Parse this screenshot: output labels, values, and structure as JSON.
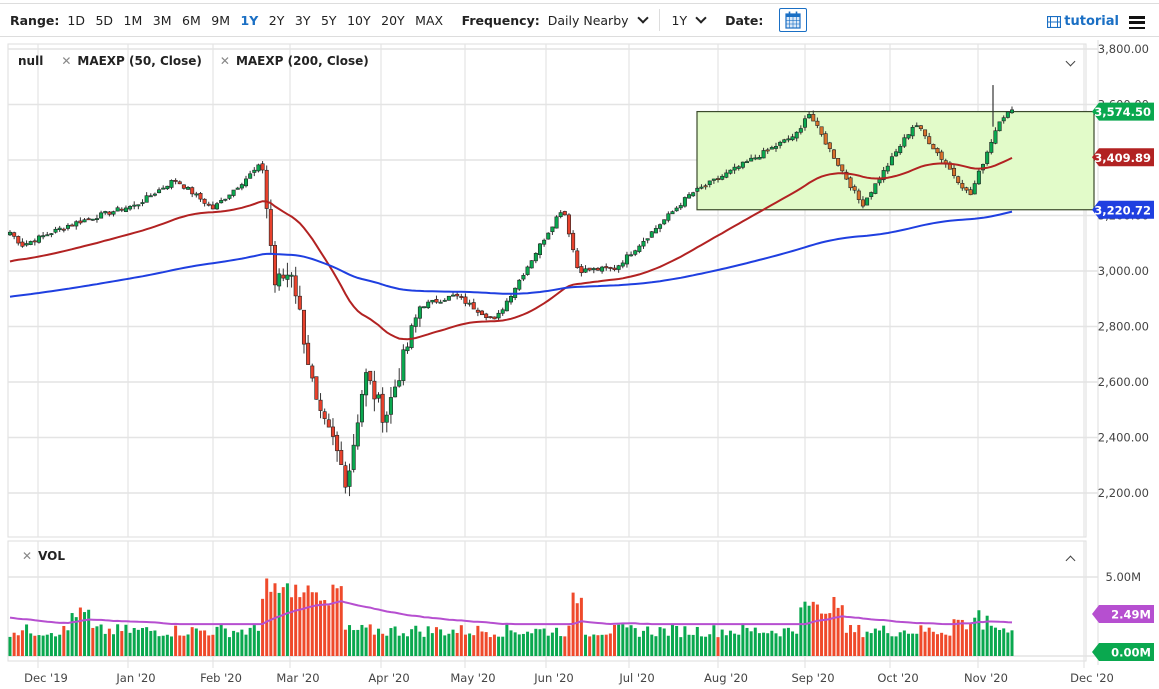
{
  "toolbar": {
    "range_label": "Range:",
    "ranges": [
      "1D",
      "5D",
      "1M",
      "3M",
      "6M",
      "9M",
      "1Y",
      "2Y",
      "3Y",
      "5Y",
      "10Y",
      "20Y",
      "MAX"
    ],
    "active_range": "1Y",
    "frequency_label": "Frequency:",
    "frequency_value": "Daily Nearby",
    "period_value": "1Y",
    "date_label": "Date:",
    "calendar_icon": "calendar-icon",
    "tutorial_label": "tutorial",
    "tutorial_icon": "film-icon",
    "menu_icon": "hamburger-icon"
  },
  "legend": {
    "symbol": "null",
    "studies": [
      {
        "label": "MAEXP (50, Close)",
        "color": "#b22222"
      },
      {
        "label": "MAEXP (200, Close)",
        "color": "#1f3fe0"
      }
    ]
  },
  "volume_panel": {
    "label": "VOL",
    "axis_labels": [
      "5.00M"
    ],
    "tags": [
      {
        "label": "2.49M",
        "color": "#b64fd0"
      },
      {
        "label": "0.00M",
        "color": "#0aa84f"
      }
    ]
  },
  "price_tags": [
    {
      "label": "3,574.50",
      "color": "#0aa84f",
      "value": 3574.5
    },
    {
      "label": "3,409.89",
      "color": "#b22222",
      "value": 3409.89
    },
    {
      "label": "3,220.72",
      "color": "#1f3fe0",
      "value": 3220.72
    }
  ],
  "chart_data": {
    "type": "candlestick",
    "title": "",
    "xlabel": "",
    "ylabel": "",
    "ylim": [
      2150,
      3820
    ],
    "y_ticks": [
      "3,800.00",
      "3,600.00",
      "3,400.00",
      "3,200.00",
      "3,000.00",
      "2,800.00",
      "2,600.00",
      "2,400.00",
      "2,200.00"
    ],
    "x_ticks": [
      "Dec '19",
      "Jan '20",
      "Feb '20",
      "Mar '20",
      "Apr '20",
      "May '20",
      "Jun '20",
      "Jul '20",
      "Aug '20",
      "Sep '20",
      "Oct '20",
      "Nov '20",
      "Dec '20"
    ],
    "grid": true,
    "close_keyframes": [
      {
        "date": "Nov '19 end",
        "close": 3140
      },
      {
        "date": "Dec 3 '19",
        "close": 3093
      },
      {
        "date": "Dec '19 mid",
        "close": 3168
      },
      {
        "date": "Dec 31 '19",
        "close": 3231
      },
      {
        "date": "Jan 3 '20",
        "close": 3235
      },
      {
        "date": "Jan 17 '20",
        "close": 3330
      },
      {
        "date": "Jan 31 '20",
        "close": 3225
      },
      {
        "date": "Feb 19 '20",
        "close": 3386
      },
      {
        "date": "Feb 28 '20",
        "close": 2954
      },
      {
        "date": "Mar 3 '20",
        "close": 3003
      },
      {
        "date": "Mar 12 '20",
        "close": 2480
      },
      {
        "date": "Mar 16 '20",
        "close": 2386
      },
      {
        "date": "Mar 23 '20",
        "close": 2237
      },
      {
        "date": "Mar 26 '20",
        "close": 2630
      },
      {
        "date": "Apr 1 '20",
        "close": 2470
      },
      {
        "date": "Apr 17 '20",
        "close": 2874
      },
      {
        "date": "Apr 30 '20",
        "close": 2912
      },
      {
        "date": "May 13 '20",
        "close": 2820
      },
      {
        "date": "Jun 8 '20",
        "close": 3232
      },
      {
        "date": "Jun 11 '20",
        "close": 3002
      },
      {
        "date": "Jun 26 '20",
        "close": 3009
      },
      {
        "date": "Jul 22 '20",
        "close": 3276
      },
      {
        "date": "Aug 31 '20",
        "close": 3500
      },
      {
        "date": "Sep 2 '20",
        "close": 3580
      },
      {
        "date": "Sep 23 '20",
        "close": 3237
      },
      {
        "date": "Oct 12 '20",
        "close": 3534
      },
      {
        "date": "Oct 30 '20",
        "close": 3270
      },
      {
        "date": "Nov 9 '20",
        "close": 3550
      },
      {
        "date": "Nov 13 '20",
        "close": 3574.5
      }
    ],
    "series": [
      {
        "name": "Price (OHLC candles)",
        "color_up": "#0aa84f",
        "color_down": "#e8412c"
      },
      {
        "name": "MAEXP (50, Close)",
        "color": "#b22222",
        "last": 3409.89
      },
      {
        "name": "MAEXP (200, Close)",
        "color": "#1f3fe0",
        "last": 3220.72
      },
      {
        "name": "Volume",
        "last": 0.0,
        "unit": "M"
      },
      {
        "name": "Volume MA",
        "color": "#b64fd0",
        "last": 2.49,
        "unit": "M"
      }
    ],
    "annotations": [
      {
        "type": "rectangle",
        "fill": "#d9f7b4",
        "from": "Jul 24 '20",
        "to": "Dec '20",
        "y_top": 3574.5,
        "y_bottom": 3220.72
      }
    ],
    "legend_position": "top-left"
  }
}
